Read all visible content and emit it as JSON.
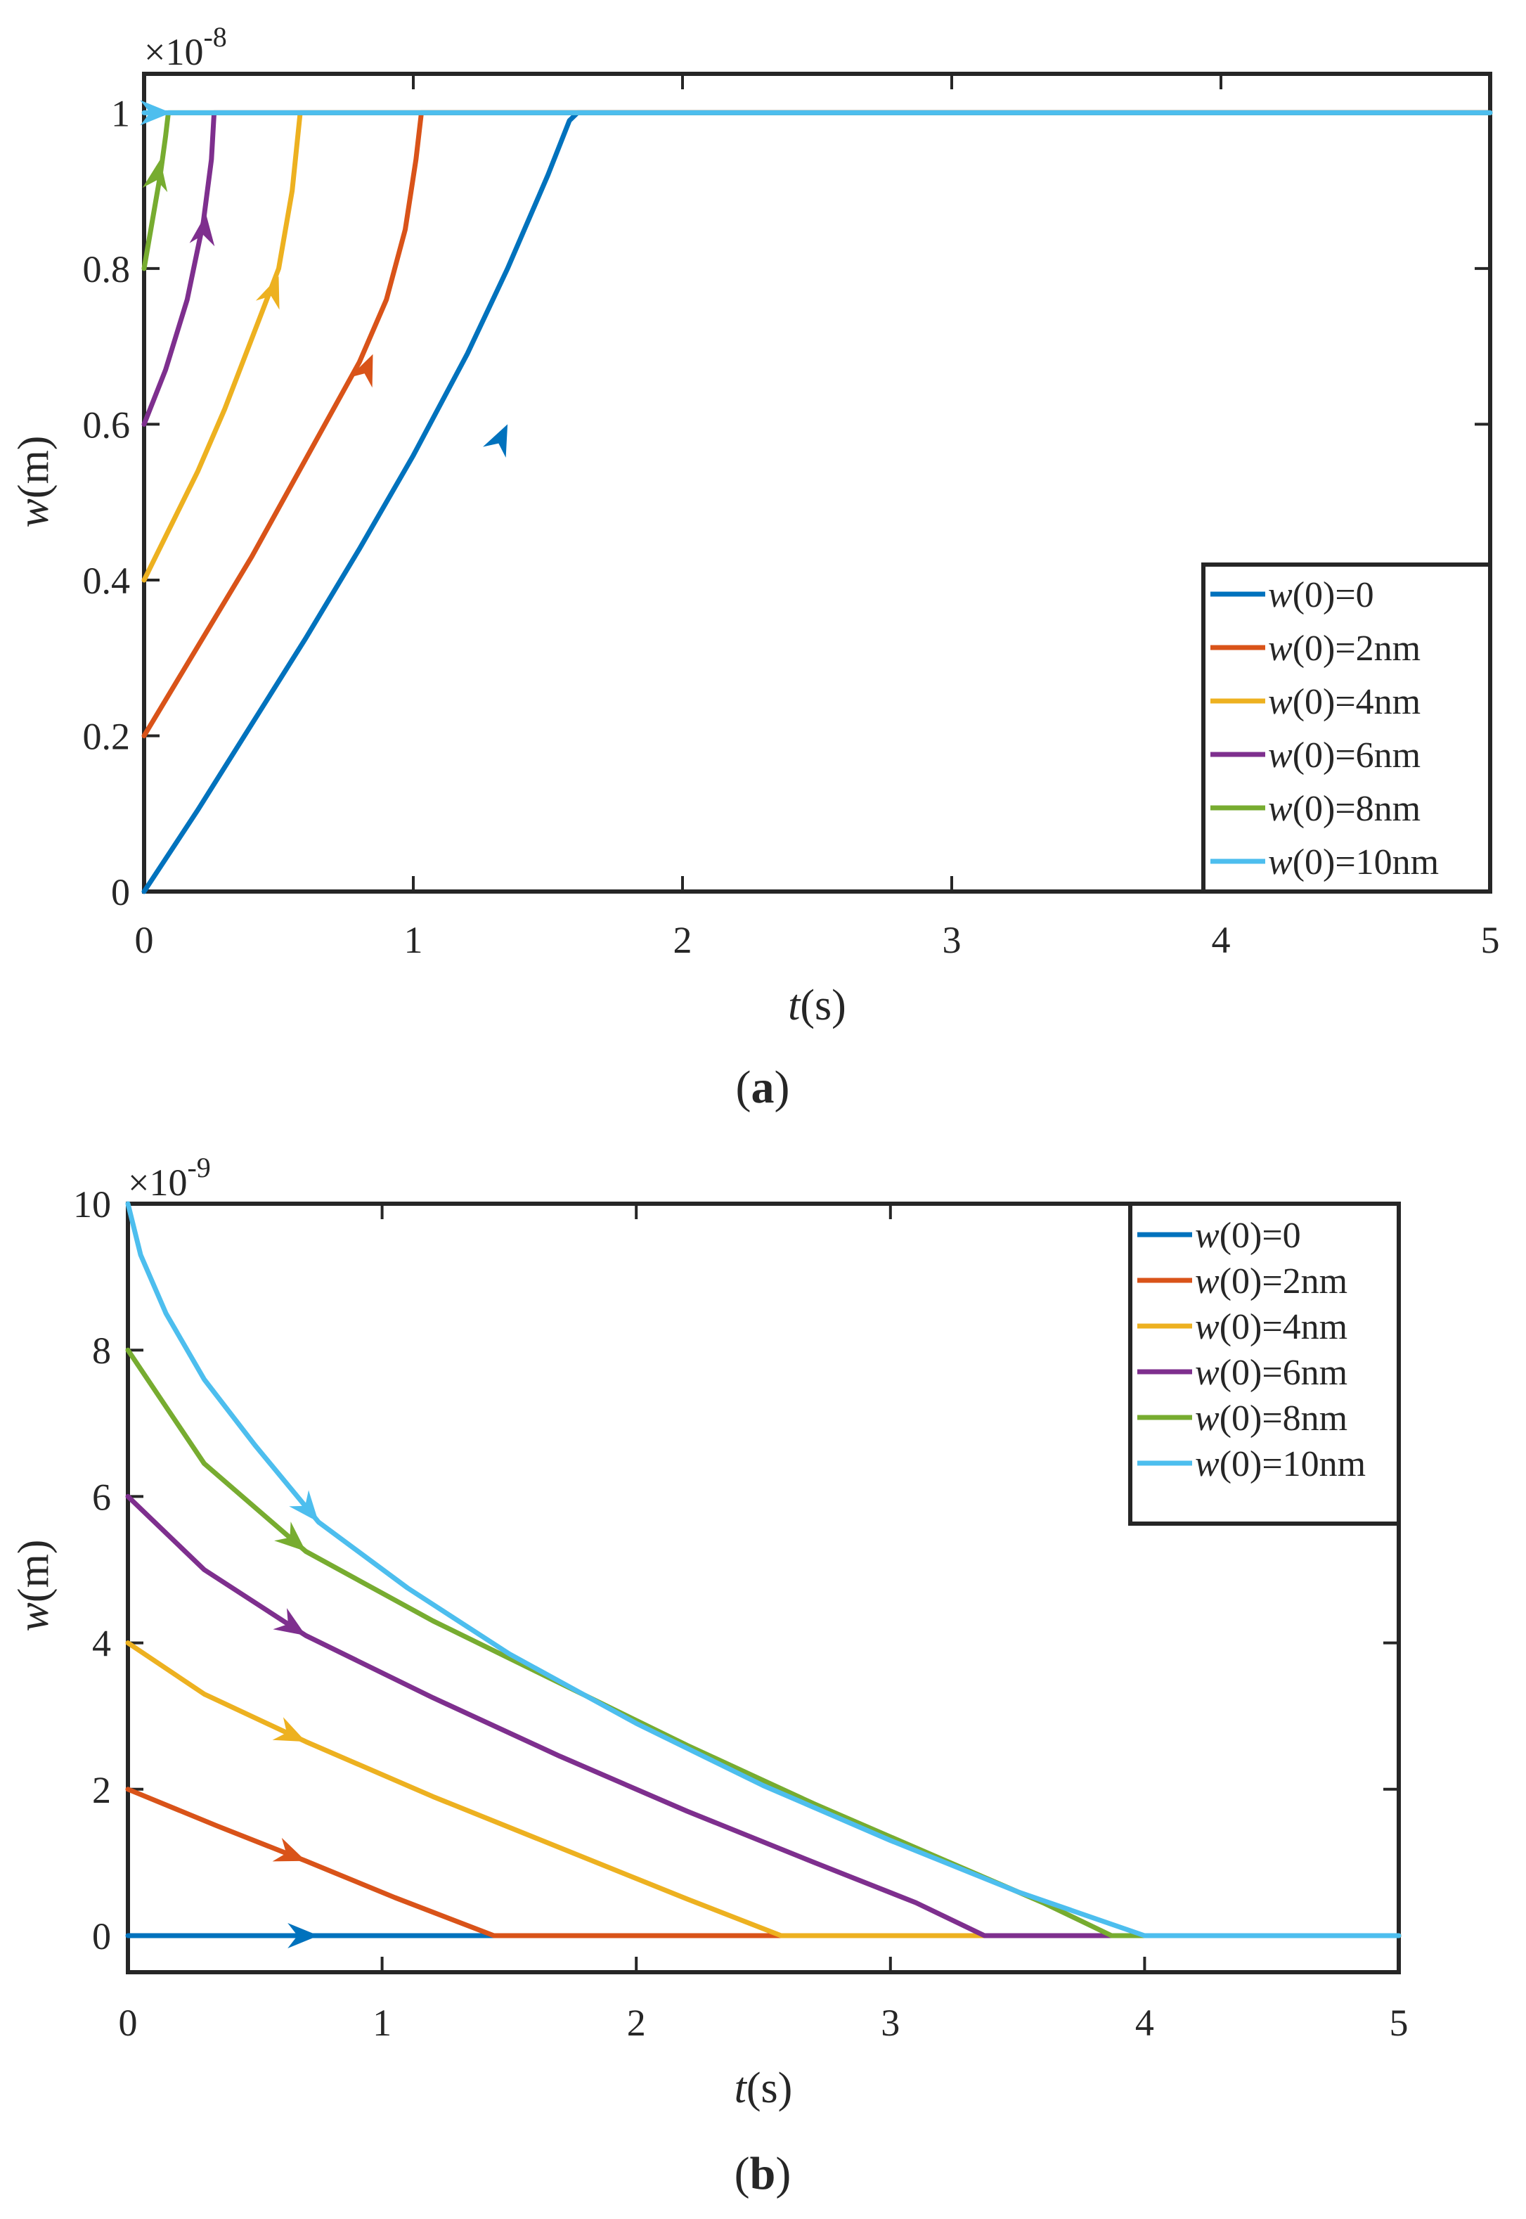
{
  "chart_data": [
    {
      "panel_label": "a",
      "type": "line",
      "title": "",
      "xlabel_italic": "t",
      "xlabel_unit": "(s)",
      "ylabel_italic": "w",
      "ylabel_unit": "(m)",
      "exponent_prefix": "×10",
      "exponent": "-8",
      "xlim": [
        0,
        5
      ],
      "ylim": [
        0,
        1.05
      ],
      "xticks": [
        0,
        1,
        2,
        3,
        4,
        5
      ],
      "xtick_labels": [
        "0",
        "1",
        "2",
        "3",
        "4",
        "5"
      ],
      "yticks": [
        0,
        0.2,
        0.4,
        0.6,
        0.8,
        1
      ],
      "ytick_labels": [
        "0",
        "0.2",
        "0.4",
        "0.6",
        "0.8",
        "1"
      ],
      "grid": false,
      "legend_position": "bottom-right",
      "series": [
        {
          "name": "w(0)=0",
          "legend_italic": "w",
          "legend_rest": "(0)=0",
          "color": "#0072BD",
          "x": [
            0,
            0.2,
            0.4,
            0.6,
            0.8,
            1.0,
            1.2,
            1.35,
            1.5,
            1.58,
            1.61,
            5
          ],
          "y": [
            0,
            0.105,
            0.215,
            0.325,
            0.44,
            0.56,
            0.69,
            0.8,
            0.92,
            0.99,
            1.0,
            1.0
          ],
          "arrow": [
            1.35,
            0.6
          ]
        },
        {
          "name": "w(0)=2nm",
          "legend_italic": "w",
          "legend_rest": "(0)=2nm",
          "color": "#D95319",
          "x": [
            0,
            0.2,
            0.4,
            0.6,
            0.8,
            0.9,
            0.97,
            1.01,
            1.03,
            5
          ],
          "y": [
            0.2,
            0.315,
            0.43,
            0.555,
            0.68,
            0.76,
            0.85,
            0.94,
            1.0,
            1.0
          ],
          "arrow": [
            0.85,
            0.69
          ]
        },
        {
          "name": "w(0)=4nm",
          "legend_italic": "w",
          "legend_rest": "(0)=4nm",
          "color": "#EDB120",
          "x": [
            0,
            0.1,
            0.2,
            0.3,
            0.4,
            0.5,
            0.55,
            0.58,
            5
          ],
          "y": [
            0.4,
            0.47,
            0.54,
            0.62,
            0.71,
            0.8,
            0.9,
            1.0,
            1.0
          ],
          "arrow": [
            0.5,
            0.79
          ]
        },
        {
          "name": "w(0)=6nm",
          "legend_italic": "w",
          "legend_rest": "(0)=6nm",
          "color": "#7E2F8E",
          "x": [
            0,
            0.08,
            0.16,
            0.22,
            0.25,
            0.26,
            5
          ],
          "y": [
            0.6,
            0.67,
            0.76,
            0.86,
            0.94,
            1.0,
            1.0
          ],
          "arrow": [
            0.23,
            0.87
          ]
        },
        {
          "name": "w(0)=8nm",
          "legend_italic": "w",
          "legend_rest": "(0)=8nm",
          "color": "#77AC30",
          "x": [
            0,
            0.03,
            0.06,
            0.08,
            0.09,
            5
          ],
          "y": [
            0.8,
            0.86,
            0.92,
            0.97,
            1.0,
            1.0
          ],
          "arrow": [
            0.06,
            0.94
          ]
        },
        {
          "name": "w(0)=10nm",
          "legend_italic": "w",
          "legend_rest": "(0)=10nm",
          "color": "#4DBEEE",
          "x": [
            0,
            5
          ],
          "y": [
            1.0,
            1.0
          ],
          "arrow": [
            0.1,
            1.0
          ]
        }
      ]
    },
    {
      "panel_label": "b",
      "type": "line",
      "title": "",
      "xlabel_italic": "t",
      "xlabel_unit": "(s)",
      "ylabel_italic": "w",
      "ylabel_unit": "(m)",
      "exponent_prefix": "×10",
      "exponent": "-9",
      "xlim": [
        0,
        5
      ],
      "ylim": [
        -0.5,
        10
      ],
      "xticks": [
        0,
        1,
        2,
        3,
        4,
        5
      ],
      "xtick_labels": [
        "0",
        "1",
        "2",
        "3",
        "4",
        "5"
      ],
      "yticks": [
        0,
        2,
        4,
        6,
        8,
        10
      ],
      "ytick_labels": [
        "0",
        "2",
        "4",
        "6",
        "8",
        "10"
      ],
      "grid": false,
      "legend_position": "top-right",
      "series": [
        {
          "name": "w(0)=0",
          "legend_italic": "w",
          "legend_rest": "(0)=0",
          "color": "#0072BD",
          "x": [
            0,
            5
          ],
          "y": [
            0,
            0
          ],
          "arrow": [
            0.75,
            0
          ]
        },
        {
          "name": "w(0)=2nm",
          "legend_italic": "w",
          "legend_rest": "(0)=2nm",
          "color": "#D95319",
          "x": [
            0,
            0.35,
            0.7,
            1.05,
            1.44,
            5
          ],
          "y": [
            2,
            1.5,
            1.02,
            0.52,
            0,
            0
          ],
          "arrow": [
            0.7,
            1.02
          ]
        },
        {
          "name": "w(0)=4nm",
          "legend_italic": "w",
          "legend_rest": "(0)=4nm",
          "color": "#EDB120",
          "x": [
            0,
            0.3,
            0.7,
            1.2,
            1.7,
            2.2,
            2.57,
            5
          ],
          "y": [
            4,
            3.3,
            2.65,
            1.9,
            1.2,
            0.5,
            0,
            0
          ],
          "arrow": [
            0.7,
            2.65
          ]
        },
        {
          "name": "w(0)=6nm",
          "legend_italic": "w",
          "legend_rest": "(0)=6nm",
          "color": "#7E2F8E",
          "x": [
            0,
            0.3,
            0.7,
            1.2,
            1.7,
            2.2,
            2.7,
            3.1,
            3.37,
            5
          ],
          "y": [
            6,
            5.0,
            4.1,
            3.25,
            2.45,
            1.7,
            1.0,
            0.45,
            0,
            0
          ],
          "arrow": [
            0.7,
            4.1
          ]
        },
        {
          "name": "w(0)=8nm",
          "legend_italic": "w",
          "legend_rest": "(0)=8nm",
          "color": "#77AC30",
          "x": [
            0,
            0.3,
            0.7,
            1.2,
            1.7,
            2.2,
            2.7,
            3.2,
            3.6,
            3.87,
            5
          ],
          "y": [
            8,
            6.45,
            5.25,
            4.3,
            3.45,
            2.6,
            1.8,
            1.05,
            0.45,
            0,
            0
          ],
          "arrow": [
            0.7,
            5.25
          ]
        },
        {
          "name": "w(0)=10nm",
          "legend_italic": "w",
          "legend_rest": "(0)=10nm",
          "color": "#4DBEEE",
          "x": [
            0,
            0.05,
            0.15,
            0.3,
            0.5,
            0.75,
            1.1,
            1.5,
            2.0,
            2.5,
            3.0,
            3.5,
            4.0,
            5
          ],
          "y": [
            10,
            9.3,
            8.5,
            7.6,
            6.7,
            5.65,
            4.75,
            3.85,
            2.9,
            2.05,
            1.3,
            0.6,
            0,
            0
          ],
          "arrow": [
            0.75,
            5.65
          ]
        }
      ]
    }
  ]
}
